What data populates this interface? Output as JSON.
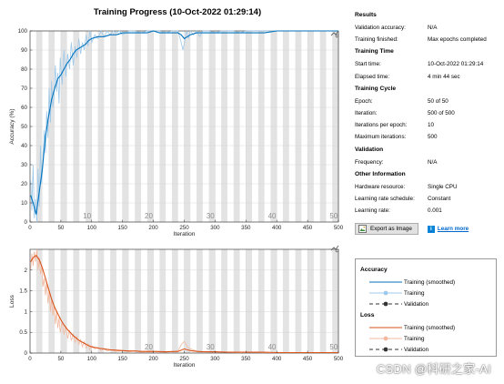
{
  "window": {
    "title": "Training Progress (10-Oct-2022 01:29:14)"
  },
  "accuracy_plot": {
    "ylabel": "Accuracy (%)",
    "xlabel": "Iteration",
    "yticks": [
      "0",
      "10",
      "20",
      "30",
      "40",
      "50",
      "60",
      "70",
      "80",
      "90",
      "100"
    ],
    "xticks": [
      "0",
      "50",
      "100",
      "150",
      "200",
      "250",
      "300",
      "350",
      "400",
      "450",
      "500"
    ],
    "epoch_labels": [
      "10",
      "20",
      "30",
      "40",
      "50"
    ]
  },
  "loss_plot": {
    "ylabel": "Loss",
    "xlabel": "Iteration",
    "yticks": [
      "0",
      "0.5",
      "1",
      "1.5",
      "2"
    ],
    "xticks": [
      "0",
      "50",
      "100",
      "150",
      "200",
      "250",
      "300",
      "350",
      "400",
      "450",
      "500"
    ],
    "epoch_labels": [
      "20",
      "30",
      "40",
      "50"
    ]
  },
  "info_panel": {
    "results": {
      "heading": "Results",
      "rows": [
        {
          "label": "Validation accuracy:",
          "value": "N/A"
        },
        {
          "label": "Training finished:",
          "value": "Max epochs completed"
        }
      ]
    },
    "training_time": {
      "heading": "Training Time",
      "rows": [
        {
          "label": "Start time:",
          "value": "10-Oct-2022 01:29:14"
        },
        {
          "label": "Elapsed time:",
          "value": "4 min 44 sec"
        }
      ]
    },
    "training_cycle": {
      "heading": "Training Cycle",
      "rows": [
        {
          "label": "Epoch:",
          "value": "50 of 50"
        },
        {
          "label": "Iteration:",
          "value": "500 of 500"
        },
        {
          "label": "Iterations per epoch:",
          "value": "10"
        },
        {
          "label": "Maximum iterations:",
          "value": "500"
        }
      ]
    },
    "validation": {
      "heading": "Validation",
      "rows": [
        {
          "label": "Frequency:",
          "value": "N/A"
        }
      ]
    },
    "other_information": {
      "heading": "Other Information",
      "rows": [
        {
          "label": "Hardware resource:",
          "value": "Single CPU"
        },
        {
          "label": "Learning rate schedule:",
          "value": "Constant"
        },
        {
          "label": "Learning rate:",
          "value": "0.001"
        }
      ]
    }
  },
  "buttons": {
    "export_label": "Export as Image",
    "learn_more_label": "Learn more"
  },
  "legend": {
    "accuracy_heading": "Accuracy",
    "loss_heading": "Loss",
    "accuracy_items": [
      {
        "label": "Training (smoothed)",
        "color": "#0072bd",
        "style": "line"
      },
      {
        "label": "Training",
        "color": "#9fc9ea",
        "style": "line-marker"
      },
      {
        "label": "Validation",
        "color": "#000000",
        "style": "dash-marker"
      }
    ],
    "loss_items": [
      {
        "label": "Training (smoothed)",
        "color": "#d95319",
        "style": "line"
      },
      {
        "label": "Training",
        "color": "#f2b9a0",
        "style": "line-marker"
      },
      {
        "label": "Validation",
        "color": "#000000",
        "style": "dash-marker"
      }
    ]
  },
  "colors": {
    "accuracy_smoothed": "#0072bd",
    "accuracy_raw": "#9fc9ea",
    "loss_smoothed": "#d95319",
    "loss_raw": "#f2b9a0",
    "epoch_band": "#e3e3e3"
  },
  "watermark": "CSDN @科研之家-AI",
  "chart_data": [
    {
      "type": "line",
      "ylabel": "Accuracy (%)",
      "xlabel": "Iteration",
      "xlim": [
        0,
        500
      ],
      "ylim": [
        0,
        100
      ],
      "epochs": 50,
      "iterations_per_epoch": 10,
      "grid": true,
      "series": [
        {
          "name": "Training (smoothed)",
          "x": [
            1,
            5,
            10,
            15,
            20,
            25,
            30,
            35,
            40,
            45,
            50,
            55,
            60,
            65,
            70,
            75,
            80,
            85,
            90,
            95,
            100,
            110,
            120,
            130,
            140,
            150,
            160,
            170,
            180,
            190,
            200,
            210,
            220,
            230,
            240,
            245,
            250,
            255,
            260,
            270,
            280,
            290,
            300,
            320,
            340,
            360,
            380,
            400,
            420,
            440,
            460,
            480,
            500
          ],
          "y": [
            14,
            10,
            4,
            16,
            28,
            45,
            55,
            64,
            70,
            75,
            77,
            80,
            83,
            85,
            88,
            90,
            91,
            92,
            93,
            95,
            96,
            97,
            97,
            98,
            98,
            99,
            99,
            99,
            99,
            99,
            100,
            99,
            99,
            99,
            99,
            98,
            96,
            97,
            98,
            99,
            99,
            99,
            99,
            99,
            99,
            99,
            99,
            100,
            100,
            100,
            100,
            100,
            100
          ]
        },
        {
          "name": "Training",
          "x": [
            1,
            3,
            5,
            7,
            9,
            11,
            13,
            15,
            17,
            19,
            21,
            23,
            25,
            27,
            29,
            31,
            33,
            35,
            37,
            39,
            41,
            43,
            45,
            47,
            49,
            52,
            55,
            58,
            61,
            64,
            67,
            70,
            73,
            76,
            79,
            82,
            85,
            88,
            91,
            94,
            97,
            100,
            105,
            110,
            115,
            120,
            125,
            130,
            135,
            140,
            145,
            150,
            160,
            170,
            180,
            190,
            200,
            210,
            220,
            230,
            240,
            245,
            248,
            251,
            254,
            257,
            260,
            265,
            270,
            275,
            280,
            290,
            300,
            310,
            320,
            330,
            340,
            350,
            360,
            380,
            400,
            420,
            440,
            460,
            480,
            500
          ],
          "y": [
            22,
            6,
            30,
            2,
            12,
            0,
            28,
            8,
            40,
            20,
            32,
            48,
            36,
            58,
            44,
            70,
            52,
            74,
            60,
            66,
            82,
            68,
            78,
            62,
            86,
            72,
            90,
            76,
            88,
            80,
            94,
            82,
            92,
            86,
            96,
            88,
            94,
            90,
            98,
            92,
            100,
            94,
            98,
            96,
            100,
            97,
            100,
            98,
            100,
            99,
            100,
            98,
            100,
            100,
            99,
            100,
            100,
            100,
            99,
            100,
            100,
            94,
            90,
            95,
            100,
            96,
            100,
            98,
            100,
            97,
            100,
            100,
            99,
            100,
            100,
            100,
            99,
            100,
            100,
            100,
            100,
            100,
            100,
            100,
            100,
            100
          ]
        }
      ]
    },
    {
      "type": "line",
      "ylabel": "Loss",
      "xlabel": "Iteration",
      "xlim": [
        0,
        500
      ],
      "ylim": [
        0,
        2.5
      ],
      "epochs": 50,
      "iterations_per_epoch": 10,
      "grid": true,
      "series": [
        {
          "name": "Training (smoothed)",
          "x": [
            1,
            5,
            10,
            15,
            20,
            25,
            30,
            35,
            40,
            45,
            50,
            55,
            60,
            65,
            70,
            75,
            80,
            85,
            90,
            95,
            100,
            110,
            120,
            130,
            140,
            150,
            160,
            170,
            180,
            190,
            200,
            220,
            240,
            250,
            255,
            260,
            270,
            280,
            300,
            320,
            340,
            360,
            380,
            400,
            420,
            440,
            460,
            480,
            500
          ],
          "y": [
            2.2,
            2.3,
            2.35,
            2.25,
            2.05,
            1.8,
            1.55,
            1.3,
            1.1,
            0.95,
            0.8,
            0.68,
            0.58,
            0.5,
            0.42,
            0.36,
            0.3,
            0.26,
            0.22,
            0.18,
            0.15,
            0.12,
            0.1,
            0.08,
            0.07,
            0.06,
            0.05,
            0.05,
            0.04,
            0.04,
            0.04,
            0.03,
            0.04,
            0.1,
            0.08,
            0.06,
            0.04,
            0.03,
            0.03,
            0.02,
            0.02,
            0.02,
            0.02,
            0.01,
            0.01,
            0.01,
            0.01,
            0.01,
            0.01
          ]
        },
        {
          "name": "Training",
          "x": [
            1,
            3,
            5,
            7,
            9,
            11,
            13,
            15,
            17,
            19,
            21,
            23,
            25,
            27,
            29,
            31,
            33,
            35,
            37,
            39,
            41,
            43,
            45,
            47,
            49,
            52,
            55,
            58,
            61,
            64,
            67,
            70,
            73,
            76,
            79,
            82,
            85,
            88,
            91,
            94,
            97,
            100,
            105,
            110,
            115,
            120,
            125,
            130,
            140,
            150,
            160,
            170,
            180,
            200,
            220,
            240,
            245,
            250,
            255,
            260,
            270,
            280,
            300,
            320,
            340,
            360,
            380,
            400,
            450,
            500
          ],
          "y": [
            2.0,
            2.4,
            2.1,
            2.45,
            2.2,
            2.5,
            2.0,
            2.3,
            1.9,
            2.1,
            1.6,
            1.8,
            1.4,
            1.7,
            1.2,
            1.5,
            1.0,
            1.3,
            0.9,
            1.15,
            0.7,
            1.0,
            0.6,
            0.85,
            0.5,
            0.75,
            0.45,
            0.65,
            0.35,
            0.55,
            0.3,
            0.45,
            0.25,
            0.4,
            0.2,
            0.32,
            0.15,
            0.28,
            0.12,
            0.22,
            0.08,
            0.18,
            0.1,
            0.14,
            0.06,
            0.1,
            0.05,
            0.08,
            0.04,
            0.06,
            0.03,
            0.05,
            0.02,
            0.03,
            0.02,
            0.05,
            0.2,
            0.28,
            0.15,
            0.1,
            0.05,
            0.03,
            0.02,
            0.02,
            0.01,
            0.02,
            0.01,
            0.01,
            0.01,
            0.01
          ]
        }
      ]
    }
  ]
}
